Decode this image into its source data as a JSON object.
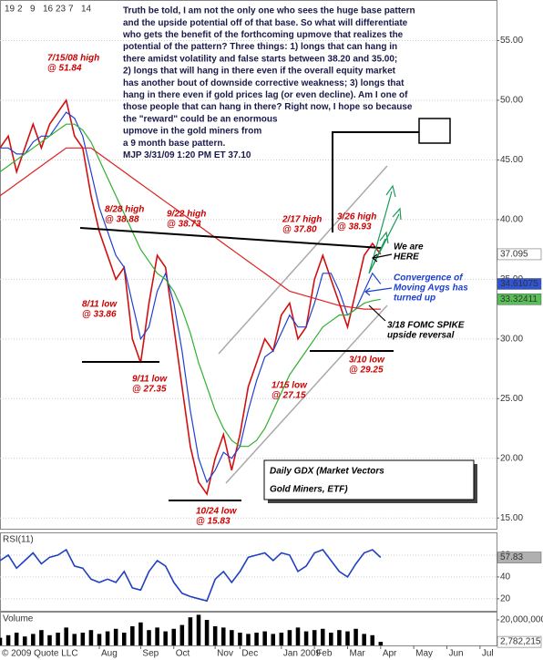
{
  "chart_data": [
    {
      "type": "line",
      "title_lines": [
        "Daily GDX (Market Vectors",
        "Gold Miners, ETF)"
      ],
      "commentary": [
        "Truth be told, I am not the only one who sees the huge base pattern",
        "and the upside potential off of that base.  So what will differentiate",
        "who gets the benefit of the forthcoming upmove that realizes the",
        "potential of the pattern?  Three things: 1) longs that can hang in",
        "there amidst volatility and false starts between 38.20 and 35.00;",
        "2) longs that will hang in there even if the overall equity market",
        "has another bout of downside corrective weakness; 3) longs that",
        "hang in there even if gold prices lag (or even decline).  Am I one of",
        "those people that can hang in there?  Right now, I hope so because",
        "the \"reward\" could be an enormous",
        "upmove in the gold miners from",
        "a 9 month base pattern.",
        "MJP  3/31/09  1:20 PM ET  37.10"
      ],
      "top_date_labels": [
        "19",
        "2",
        "9",
        "16",
        "23",
        "7",
        "14"
      ],
      "x": [
        0,
        1,
        2,
        3,
        4,
        5,
        6,
        7,
        8,
        9,
        10,
        11,
        12,
        13,
        14,
        15,
        16,
        17,
        18,
        19,
        20,
        21,
        22,
        23,
        24,
        25,
        26,
        27,
        28,
        29,
        30,
        31,
        32,
        33,
        34,
        35,
        36,
        37,
        38,
        39,
        40,
        41,
        42,
        43,
        44,
        45,
        46
      ],
      "xlim": [
        0,
        60
      ],
      "ylim": [
        14.1,
        58.4
      ],
      "yticks": [
        {
          "value": 15,
          "label": "15.00"
        },
        {
          "value": 20,
          "label": "20.00"
        },
        {
          "value": 25,
          "label": "25.00"
        },
        {
          "value": 30,
          "label": "30.00"
        },
        {
          "value": 35,
          "label": "35.00"
        },
        {
          "value": 40,
          "label": "40.00"
        },
        {
          "value": 45,
          "label": "45.00"
        },
        {
          "value": 50,
          "label": "50.00"
        },
        {
          "value": 55,
          "label": "55.00"
        }
      ],
      "grid": true,
      "series": [
        {
          "color": "#d01010",
          "box_fill": "#ffffff",
          "box_text": "#000000",
          "values": [
            46,
            47,
            44,
            46,
            48,
            46,
            48,
            49,
            50,
            47,
            46,
            42,
            39,
            37,
            35,
            36,
            30,
            28,
            33,
            37,
            36,
            31,
            26,
            21,
            18,
            17,
            20,
            22,
            19,
            22,
            26,
            28,
            30,
            29,
            32,
            33,
            30,
            31,
            35,
            37,
            35,
            33,
            31,
            34,
            37,
            38,
            37.095
          ]
        },
        {
          "color": "#2040d0",
          "box_fill": "#2f55d4",
          "box_text": "#ffffff",
          "values": [
            46,
            46,
            45.5,
            45.5,
            46.5,
            47,
            47,
            48,
            49,
            48.5,
            47,
            44,
            41,
            39,
            37,
            36,
            33,
            30,
            31,
            34,
            35.5,
            33,
            29,
            24,
            20,
            18,
            19,
            20.5,
            20,
            21,
            24,
            26.5,
            28.5,
            29,
            30.5,
            32,
            31,
            31,
            33,
            35.5,
            35.5,
            34,
            32,
            32.5,
            34,
            35.5,
            34.61075
          ]
        },
        {
          "color": "#30b030",
          "box_fill": "#58c058",
          "box_text": "#000000",
          "values": [
            44,
            44.5,
            45,
            45.5,
            46,
            46.5,
            47,
            47.5,
            48,
            48,
            47.5,
            46.5,
            45,
            43.5,
            42,
            40.5,
            39,
            37.5,
            36.5,
            35.5,
            35,
            34,
            32.5,
            30.5,
            28,
            26,
            24,
            22.5,
            21.5,
            21,
            21,
            21.5,
            22.5,
            24,
            25.5,
            27,
            28,
            29,
            30,
            31,
            31.5,
            32,
            32,
            32.5,
            33,
            33.2,
            33.32411
          ]
        },
        {
          "color": "#e02020",
          "values": [
            42,
            42.5,
            43,
            43.5,
            44,
            44.5,
            45,
            45.5,
            46,
            46,
            46,
            46,
            45.5,
            45,
            44.5,
            44,
            43.5,
            43,
            42.5,
            42,
            41.5,
            41,
            40.5,
            40,
            39.5,
            39,
            38.5,
            38,
            37.5,
            37,
            36.5,
            36,
            35.5,
            35,
            34.5,
            34,
            33.8,
            33.6,
            33.4,
            33.2,
            33,
            32.8,
            32.7,
            32.6,
            32.5,
            32.5,
            32.5
          ]
        }
      ],
      "annotations": [
        {
          "lines": [
            "7/15/08 high",
            "@ 51.84"
          ],
          "color": "#cc0000"
        },
        {
          "lines": [
            "8/28 high",
            "@ 38.88"
          ],
          "color": "#cc0000"
        },
        {
          "lines": [
            "9/22 high",
            "@ 38.73"
          ],
          "color": "#cc0000"
        },
        {
          "lines": [
            "8/11 low",
            "@ 33.86"
          ],
          "color": "#cc0000"
        },
        {
          "lines": [
            "9/11 low",
            "@ 27.35"
          ],
          "color": "#cc0000"
        },
        {
          "lines": [
            "10/24 low",
            "@ 15.83"
          ],
          "color": "#cc0000"
        },
        {
          "lines": [
            "1/15 low",
            "@ 27.15"
          ],
          "color": "#cc0000"
        },
        {
          "lines": [
            "2/17 high",
            "@ 37.80"
          ],
          "color": "#cc0000"
        },
        {
          "lines": [
            "3/26 high",
            "@ 38.93"
          ],
          "color": "#cc0000"
        },
        {
          "lines": [
            "3/10 low",
            "@ 29.25"
          ],
          "color": "#cc0000"
        },
        {
          "lines": [
            "We are",
            "HERE"
          ],
          "color": "#000000"
        },
        {
          "lines": [
            "Convergence of",
            "Moving Avgs has",
            "turned up"
          ],
          "color": "#1a3fd0"
        },
        {
          "lines": [
            "3/18 FOMC SPIKE",
            "upside reversal"
          ],
          "color": "#000000"
        }
      ]
    },
    {
      "type": "line",
      "label": "RSI(11)",
      "x": [
        0,
        1,
        2,
        3,
        4,
        5,
        6,
        7,
        8,
        9,
        10,
        11,
        12,
        13,
        14,
        15,
        16,
        17,
        18,
        19,
        20,
        21,
        22,
        23,
        24,
        25,
        26,
        27,
        28,
        29,
        30,
        31,
        32,
        33,
        34,
        35,
        36,
        37,
        38,
        39,
        40,
        41,
        42,
        43,
        44,
        45,
        46
      ],
      "xlim": [
        0,
        60
      ],
      "ylim": [
        9,
        80
      ],
      "yticks": [
        20,
        40,
        60
      ],
      "grid": true,
      "series": [
        {
          "color": "#2040c0",
          "box_fill": "#b0b0b0",
          "box_text": "#000000",
          "values": [
            55,
            60,
            48,
            55,
            62,
            52,
            58,
            60,
            65,
            50,
            48,
            38,
            35,
            38,
            35,
            45,
            30,
            28,
            45,
            55,
            50,
            35,
            25,
            22,
            20,
            18,
            38,
            45,
            35,
            45,
            58,
            60,
            62,
            55,
            62,
            60,
            45,
            50,
            62,
            65,
            55,
            45,
            40,
            52,
            62,
            65,
            57.83
          ]
        }
      ]
    },
    {
      "type": "bar",
      "label": "Volume",
      "footer": "© 2009 Quote LLC",
      "x": [
        0,
        1,
        2,
        3,
        4,
        5,
        6,
        7,
        8,
        9,
        10,
        11,
        12,
        13,
        14,
        15,
        16,
        17,
        18,
        19,
        20,
        21,
        22,
        23,
        24,
        25,
        26,
        27,
        28,
        29,
        30,
        31,
        32,
        33,
        34,
        35,
        36,
        37,
        38,
        39,
        40,
        41,
        42,
        43,
        44,
        45,
        46
      ],
      "xlim": [
        0,
        60
      ],
      "xticks": [
        {
          "value": 12,
          "label": "Aug"
        },
        {
          "value": 17,
          "label": "Sep"
        },
        {
          "value": 21,
          "label": "Oct"
        },
        {
          "value": 26,
          "label": "Nov"
        },
        {
          "value": 29,
          "label": "Dec"
        },
        {
          "value": 34,
          "label": "Jan 2009"
        },
        {
          "value": 38,
          "label": "Feb"
        },
        {
          "value": 42,
          "label": "Mar"
        },
        {
          "value": 46,
          "label": "Apr"
        },
        {
          "value": 50,
          "label": "May"
        },
        {
          "value": 54,
          "label": "Jun"
        },
        {
          "value": 58,
          "label": "Jul"
        }
      ],
      "ylim": [
        0,
        25700000
      ],
      "yticks": [
        {
          "value": 20000000,
          "label": "20,000,000"
        }
      ],
      "color": "#000000",
      "values": [
        6000000,
        8000000,
        10000000,
        7000000,
        9000000,
        12000000,
        8000000,
        10000000,
        14000000,
        9000000,
        10000000,
        12000000,
        9000000,
        11000000,
        13000000,
        10000000,
        15000000,
        18000000,
        12000000,
        14000000,
        11000000,
        13000000,
        16000000,
        22000000,
        24000000,
        20000000,
        15000000,
        14000000,
        12000000,
        10000000,
        9000000,
        10000000,
        11000000,
        9000000,
        10000000,
        12000000,
        14000000,
        11000000,
        12000000,
        13000000,
        10000000,
        12000000,
        11000000,
        13000000,
        9000000,
        8000000,
        2782215
      ],
      "value_labels": [
        null,
        null,
        null,
        null,
        null,
        null,
        null,
        null,
        null,
        null,
        null,
        null,
        null,
        null,
        null,
        null,
        null,
        null,
        null,
        null,
        null,
        null,
        null,
        null,
        null,
        null,
        null,
        null,
        null,
        null,
        null,
        null,
        null,
        null,
        null,
        null,
        null,
        null,
        null,
        null,
        null,
        null,
        null,
        null,
        null,
        null,
        "2,782,215"
      ]
    }
  ]
}
